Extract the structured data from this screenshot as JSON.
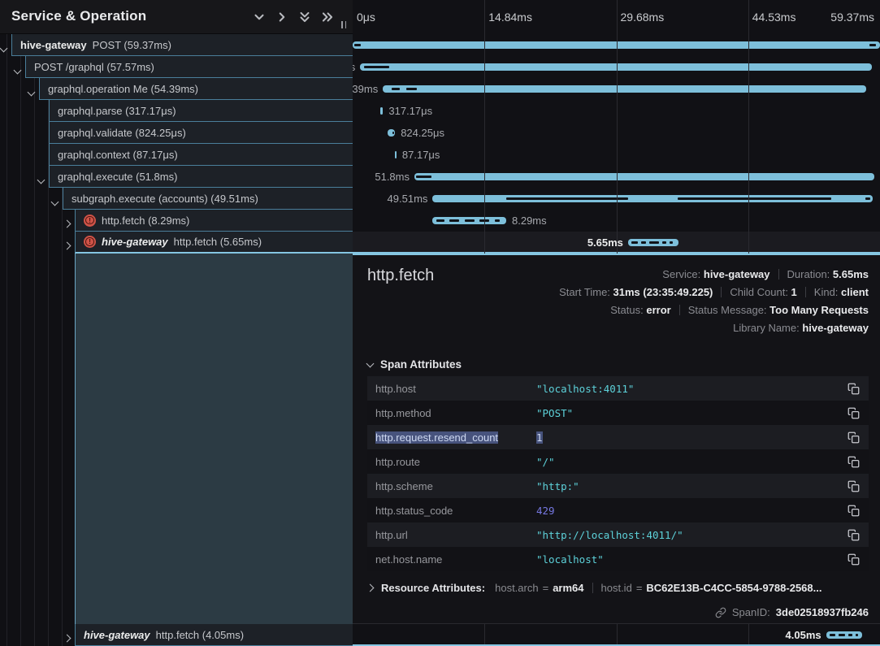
{
  "tree_header": {
    "title": "Service & Operation",
    "icons": [
      "chevron-down-icon",
      "chevron-right-icon",
      "chevrons-down-icon",
      "chevrons-right-icon"
    ],
    "resize_handle": "||"
  },
  "ruler": {
    "ticks": [
      "0μs",
      "14.84ms",
      "29.68ms",
      "44.53ms",
      "59.37ms"
    ],
    "total_ms": 59.37
  },
  "spans": [
    {
      "service": "hive-gateway",
      "service_style": "bold",
      "op": "POST",
      "duration": "59.37ms",
      "indent": 0,
      "caret": "down",
      "error": false,
      "selected": false,
      "start_ms": 0,
      "dur_ms": 59.37,
      "bar_label": "none",
      "ticks": [
        [
          0.2,
          0.9
        ],
        [
          58.2,
          58.9
        ]
      ]
    },
    {
      "service": "",
      "op": "POST /graphql",
      "duration": "57.57ms",
      "indent": 1,
      "caret": "down",
      "error": false,
      "selected": false,
      "start_ms": 0.85,
      "dur_ms": 57.57,
      "bar_label": "left",
      "ticks": [
        [
          1.3,
          4.1
        ]
      ]
    },
    {
      "service": "",
      "op": "graphql.operation Me",
      "duration": "54.39ms",
      "indent": 2,
      "caret": "down",
      "error": false,
      "selected": false,
      "start_ms": 3.4,
      "dur_ms": 54.39,
      "bar_label": "left",
      "ticks": [
        [
          4.4,
          5.3
        ],
        [
          6.0,
          7.2
        ]
      ]
    },
    {
      "service": "",
      "op": "graphql.parse",
      "duration": "317.17μs",
      "indent": 3,
      "caret": null,
      "error": false,
      "selected": false,
      "start_ms": 3.1,
      "dur_ms": 0.317,
      "bar_label": "right",
      "ticks": []
    },
    {
      "service": "",
      "op": "graphql.validate",
      "duration": "824.25μs",
      "indent": 3,
      "caret": null,
      "error": false,
      "selected": false,
      "start_ms": 3.95,
      "dur_ms": 0.824,
      "bar_label": "right",
      "ticks": [
        [
          4.45,
          4.65
        ]
      ]
    },
    {
      "service": "",
      "op": "graphql.context",
      "duration": "87.17μs",
      "indent": 3,
      "caret": null,
      "error": false,
      "selected": false,
      "start_ms": 4.75,
      "dur_ms": 0.087,
      "bar_label": "right",
      "ticks": []
    },
    {
      "service": "",
      "op": "graphql.execute",
      "duration": "51.8ms",
      "indent": 3,
      "caret": "down",
      "error": false,
      "selected": false,
      "start_ms": 6.95,
      "dur_ms": 51.8,
      "bar_label": "left",
      "ticks": [
        [
          7.15,
          8.9
        ]
      ]
    },
    {
      "service": "",
      "op": "subgraph.execute (accounts)",
      "duration": "49.51ms",
      "indent": 4,
      "caret": "down",
      "error": false,
      "selected": false,
      "start_ms": 9.0,
      "dur_ms": 49.51,
      "bar_label": "left",
      "ticks": [
        [
          17.3,
          31.0
        ],
        [
          36.6,
          53.9
        ],
        [
          57.7,
          58.3
        ]
      ]
    },
    {
      "service": "",
      "op": "http.fetch",
      "duration": "8.29ms",
      "indent": 5,
      "caret": "right",
      "error": true,
      "selected": false,
      "start_ms": 9.0,
      "dur_ms": 8.29,
      "bar_label": "right",
      "ticks": [
        [
          9.4,
          10.3
        ],
        [
          10.9,
          12.0
        ],
        [
          12.6,
          13.7
        ],
        [
          14.3,
          15.4
        ],
        [
          16.0,
          16.6
        ]
      ]
    },
    {
      "service": "hive-gateway",
      "service_style": "bold-italic",
      "op": "http.fetch",
      "duration": "5.65ms",
      "indent": 5,
      "caret": "right",
      "error": true,
      "selected": true,
      "start_ms": 31.0,
      "dur_ms": 5.65,
      "bar_label": "left",
      "bar_label_bright": true,
      "ticks": [
        [
          31.4,
          32.1
        ],
        [
          32.5,
          33.0
        ],
        [
          33.4,
          34.5
        ],
        [
          34.9,
          35.3
        ],
        [
          35.7,
          36.0
        ]
      ]
    }
  ],
  "bottom_span": {
    "service": "hive-gateway",
    "service_style": "bold-italic",
    "op": "http.fetch",
    "duration": "4.05ms",
    "indent": 5,
    "caret": "right",
    "error": false,
    "selected": false,
    "start_ms": 53.3,
    "dur_ms": 4.05,
    "bar_label": "left",
    "bar_label_bright": true,
    "ticks": [
      [
        53.7,
        54.3
      ],
      [
        54.7,
        55.4
      ],
      [
        55.8,
        56.3
      ],
      [
        56.6,
        56.9
      ]
    ]
  },
  "detail": {
    "title": "http.fetch",
    "meta_rows": [
      [
        {
          "label": "Service:",
          "value": "hive-gateway"
        },
        {
          "label": "Duration:",
          "value": "5.65ms"
        }
      ],
      [
        {
          "label": "Start Time:",
          "value": "31ms (23:35:49.225)"
        },
        {
          "label": "Child Count:",
          "value": "1"
        },
        {
          "label": "Kind:",
          "value": "client"
        }
      ],
      [
        {
          "label": "Status:",
          "value": "error"
        },
        {
          "label": "Status Message:",
          "value": "Too Many Requests"
        }
      ],
      [
        {
          "label": "Library Name:",
          "value": "hive-gateway"
        }
      ]
    ],
    "span_attributes": {
      "header": "Span Attributes",
      "rows": [
        {
          "key": "http.host",
          "value": "\"localhost:4011\"",
          "type": "string",
          "selected": false
        },
        {
          "key": "http.method",
          "value": "\"POST\"",
          "type": "string",
          "selected": false
        },
        {
          "key": "http.request.resend_count",
          "value": "1",
          "type": "number",
          "selected": true
        },
        {
          "key": "http.route",
          "value": "\"/\"",
          "type": "string",
          "selected": false
        },
        {
          "key": "http.scheme",
          "value": "\"http:\"",
          "type": "string",
          "selected": false
        },
        {
          "key": "http.status_code",
          "value": "429",
          "type": "number",
          "selected": false
        },
        {
          "key": "http.url",
          "value": "\"http://localhost:4011/\"",
          "type": "string",
          "selected": false
        },
        {
          "key": "net.host.name",
          "value": "\"localhost\"",
          "type": "string",
          "selected": false
        }
      ]
    },
    "resource_attributes": {
      "header": "Resource Attributes:",
      "items": [
        {
          "key": "host.arch",
          "value": "arm64"
        },
        {
          "key": "host.id",
          "value": "BC62E13B-C4CC-5854-9788-2568..."
        }
      ]
    },
    "span_id": {
      "label": "SpanID:",
      "value": "3de02518937fb246"
    }
  },
  "colors": {
    "bar": "#7dbfda",
    "selected_border": "#85c6e2",
    "row_border": "#4a7e9a",
    "error_icon": "#cf5348",
    "string_value": "#5dd2da",
    "number_value": "#7678e2",
    "selection_bg": "#47537d",
    "expanded_bg": "#2c3b44"
  }
}
